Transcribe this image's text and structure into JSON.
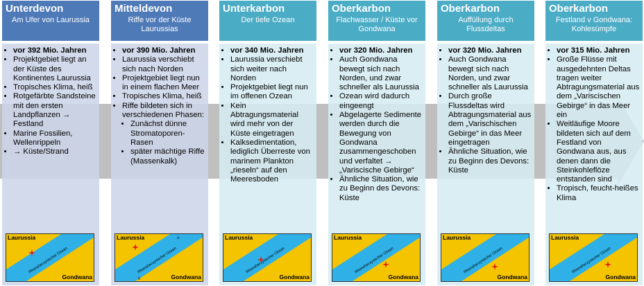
{
  "columns": [
    {
      "title": "Unterdevon",
      "subtitle": "Am Ufer von Laurussia",
      "style": "dark",
      "bullets": [
        "vor 392 Mio. Jahren",
        "Projektgebiet liegt an der Küste des Kontinentes Laurussia",
        "Tropisches Klima, heiß",
        "Rotgefärbte Sandsteine mit den ersten Landpflanzen → Festland",
        "Marine Fossilien, Wellenrippeln",
        "→ Küste/Strand"
      ],
      "map": {
        "north": "Laurussia",
        "ocean": "Rhenoherzynischer Ozean",
        "south": "Gondwana"
      }
    },
    {
      "title": "Mitteldevon",
      "subtitle": "Riffe vor der Küste Laurussias",
      "style": "dark",
      "bullets": [
        "vor 390 Mio. Jahren",
        "Laurussia verschiebt sich nach Norden",
        "Projektgebiet liegt nun in einem flachen Meer",
        "Tropisches Klima, heiß",
        {
          "text": "Riffe bildeten sich in verschiedenen Phasen:",
          "sub": [
            "Zunächst dünne Stromatoporen-Rasen",
            "später mächtige Riffe (Massenkalk)"
          ]
        }
      ],
      "map": {
        "north": "Laurussia",
        "ocean": "Rhenoherzynischer Ozean",
        "south": "Gondwana",
        "marks": [
          "a",
          "b"
        ]
      }
    },
    {
      "title": "Unterkarbon",
      "subtitle": "Der tiefe Ozean",
      "style": "teal",
      "bullets": [
        "vor 340 Mio. Jahren",
        "Laurussia verschiebt sich weiter nach Norden",
        "Projektgebiet liegt nun im offenen Ozean",
        "Kein Abtragungsmaterial wird mehr von der Küste eingetragen",
        "Kalksedimentation, lediglich Überreste von marinem Plankton „rieseln“ auf den Meeresboden"
      ],
      "map": {
        "north": "Laurussia",
        "ocean": "Rhenoherzynischer Ozean",
        "south": "Gondwana"
      }
    },
    {
      "title": "Oberkarbon",
      "subtitle": "Flachwasser / Küste vor Gondwana",
      "style": "teal",
      "bullets": [
        "vor 320 Mio. Jahren",
        "Auch Gondwana bewegt sich nach Norden, und zwar schneller als Laurussia",
        "Ozean wird dadurch eingeengt",
        "Abgelagerte Sedimente werden durch die Bewegung von Gondwana zusammengeschoben und verfaltet → „Variscische Gebirge“",
        "Ähnliche Situation, wie zu Beginn des Devons: Küste"
      ],
      "map": {
        "north": "Laurussia",
        "ocean": "Rhenoherzynischer Ozean",
        "south": "Gondwana"
      }
    },
    {
      "title": "Oberkarbon",
      "subtitle": "Auffüllung durch Flussdeltas",
      "style": "teal",
      "bullets": [
        "vor 320 Mio. Jahren",
        "Auch Gondwana bewegt sich nach Norden, und zwar schneller als Laurussia",
        "Durch große Flussdeltas wird Abtragungsmaterial aus dem „Varischischen Gebirge“ in das Meer eingetragen",
        "Ähnliche Situation, wie zu Beginn des Devons: Küste"
      ],
      "map": {
        "north": "Laurussia",
        "ocean": "Rhenoherzynischer Ozean",
        "south": "Gondwana"
      }
    },
    {
      "title": "Oberkarbon",
      "subtitle": "Festland v Gondwana: Kohlesümpfe",
      "style": "teal",
      "bullets": [
        "vor 315 Mio. Jahren",
        "Große Flüsse mit ausgedehnten Deltas tragen weiter Abtragungsmaterial aus dem „Variscischen Gebirge“ in das Meer ein",
        "Weitläufige Moore bildeten sich auf dem Festland von Gondwana aus, aus denen dann die Steinkohleflöze entstanden sind",
        "Tropisch, feucht-heißes Klima"
      ],
      "map": {
        "north": "Laurussia",
        "ocean": "Rhenoherzynischer Ozean",
        "south": "Gondwana"
      }
    }
  ]
}
